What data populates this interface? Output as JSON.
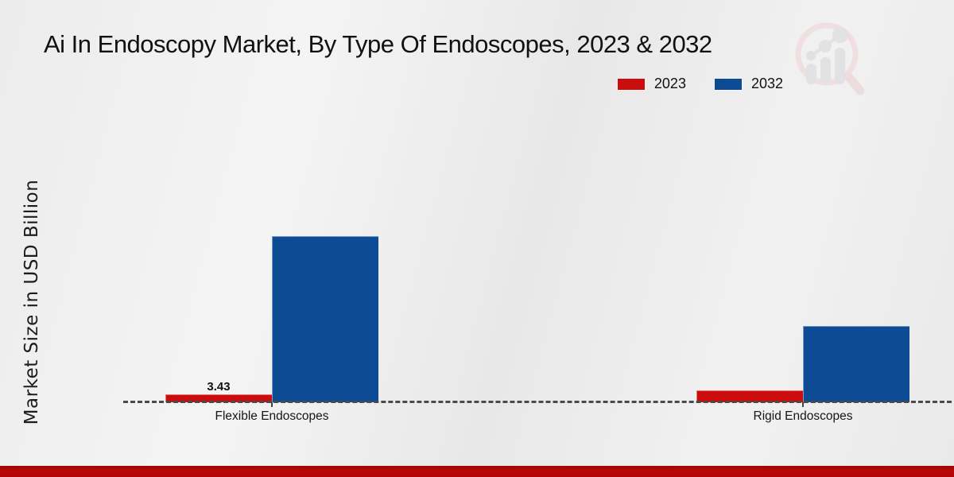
{
  "page": {
    "title": "Ai In Endoscopy Market, By Type Of Endoscopes, 2023 & 2032"
  },
  "legend": {
    "items": [
      {
        "label": "2023",
        "color": "#cc0d0d"
      },
      {
        "label": "2032",
        "color": "#0d4c94"
      }
    ]
  },
  "chart_data": {
    "type": "bar",
    "title": "Ai In Endoscopy Market, By Type Of Endoscopes, 2023 & 2032",
    "categories": [
      "Flexible Endoscopes",
      "Rigid Endoscopes"
    ],
    "series": [
      {
        "name": "2023",
        "color": "#cc0d0d",
        "values": [
          3.43,
          5.1
        ]
      },
      {
        "name": "2032",
        "color": "#0d4c94",
        "values": [
          71.7,
          32.9
        ]
      }
    ],
    "data_labels": [
      {
        "series": "2023",
        "category": "Flexible Endoscopes",
        "text": "3.43"
      }
    ],
    "xlabel": "",
    "ylabel": "Market Size in USD Billion",
    "ylim": [
      0,
      75
    ],
    "grid": false,
    "legend_position": "top-right",
    "baseline_style": "dashed"
  },
  "watermark": {
    "name": "market-research-chart-logo"
  },
  "colors": {
    "bar_2023": "#cc0d0d",
    "bar_2032": "#0d4c94",
    "axis_dash": "#4a4a4a",
    "footer_strip": "#b40606",
    "background": "#ebebeb"
  }
}
